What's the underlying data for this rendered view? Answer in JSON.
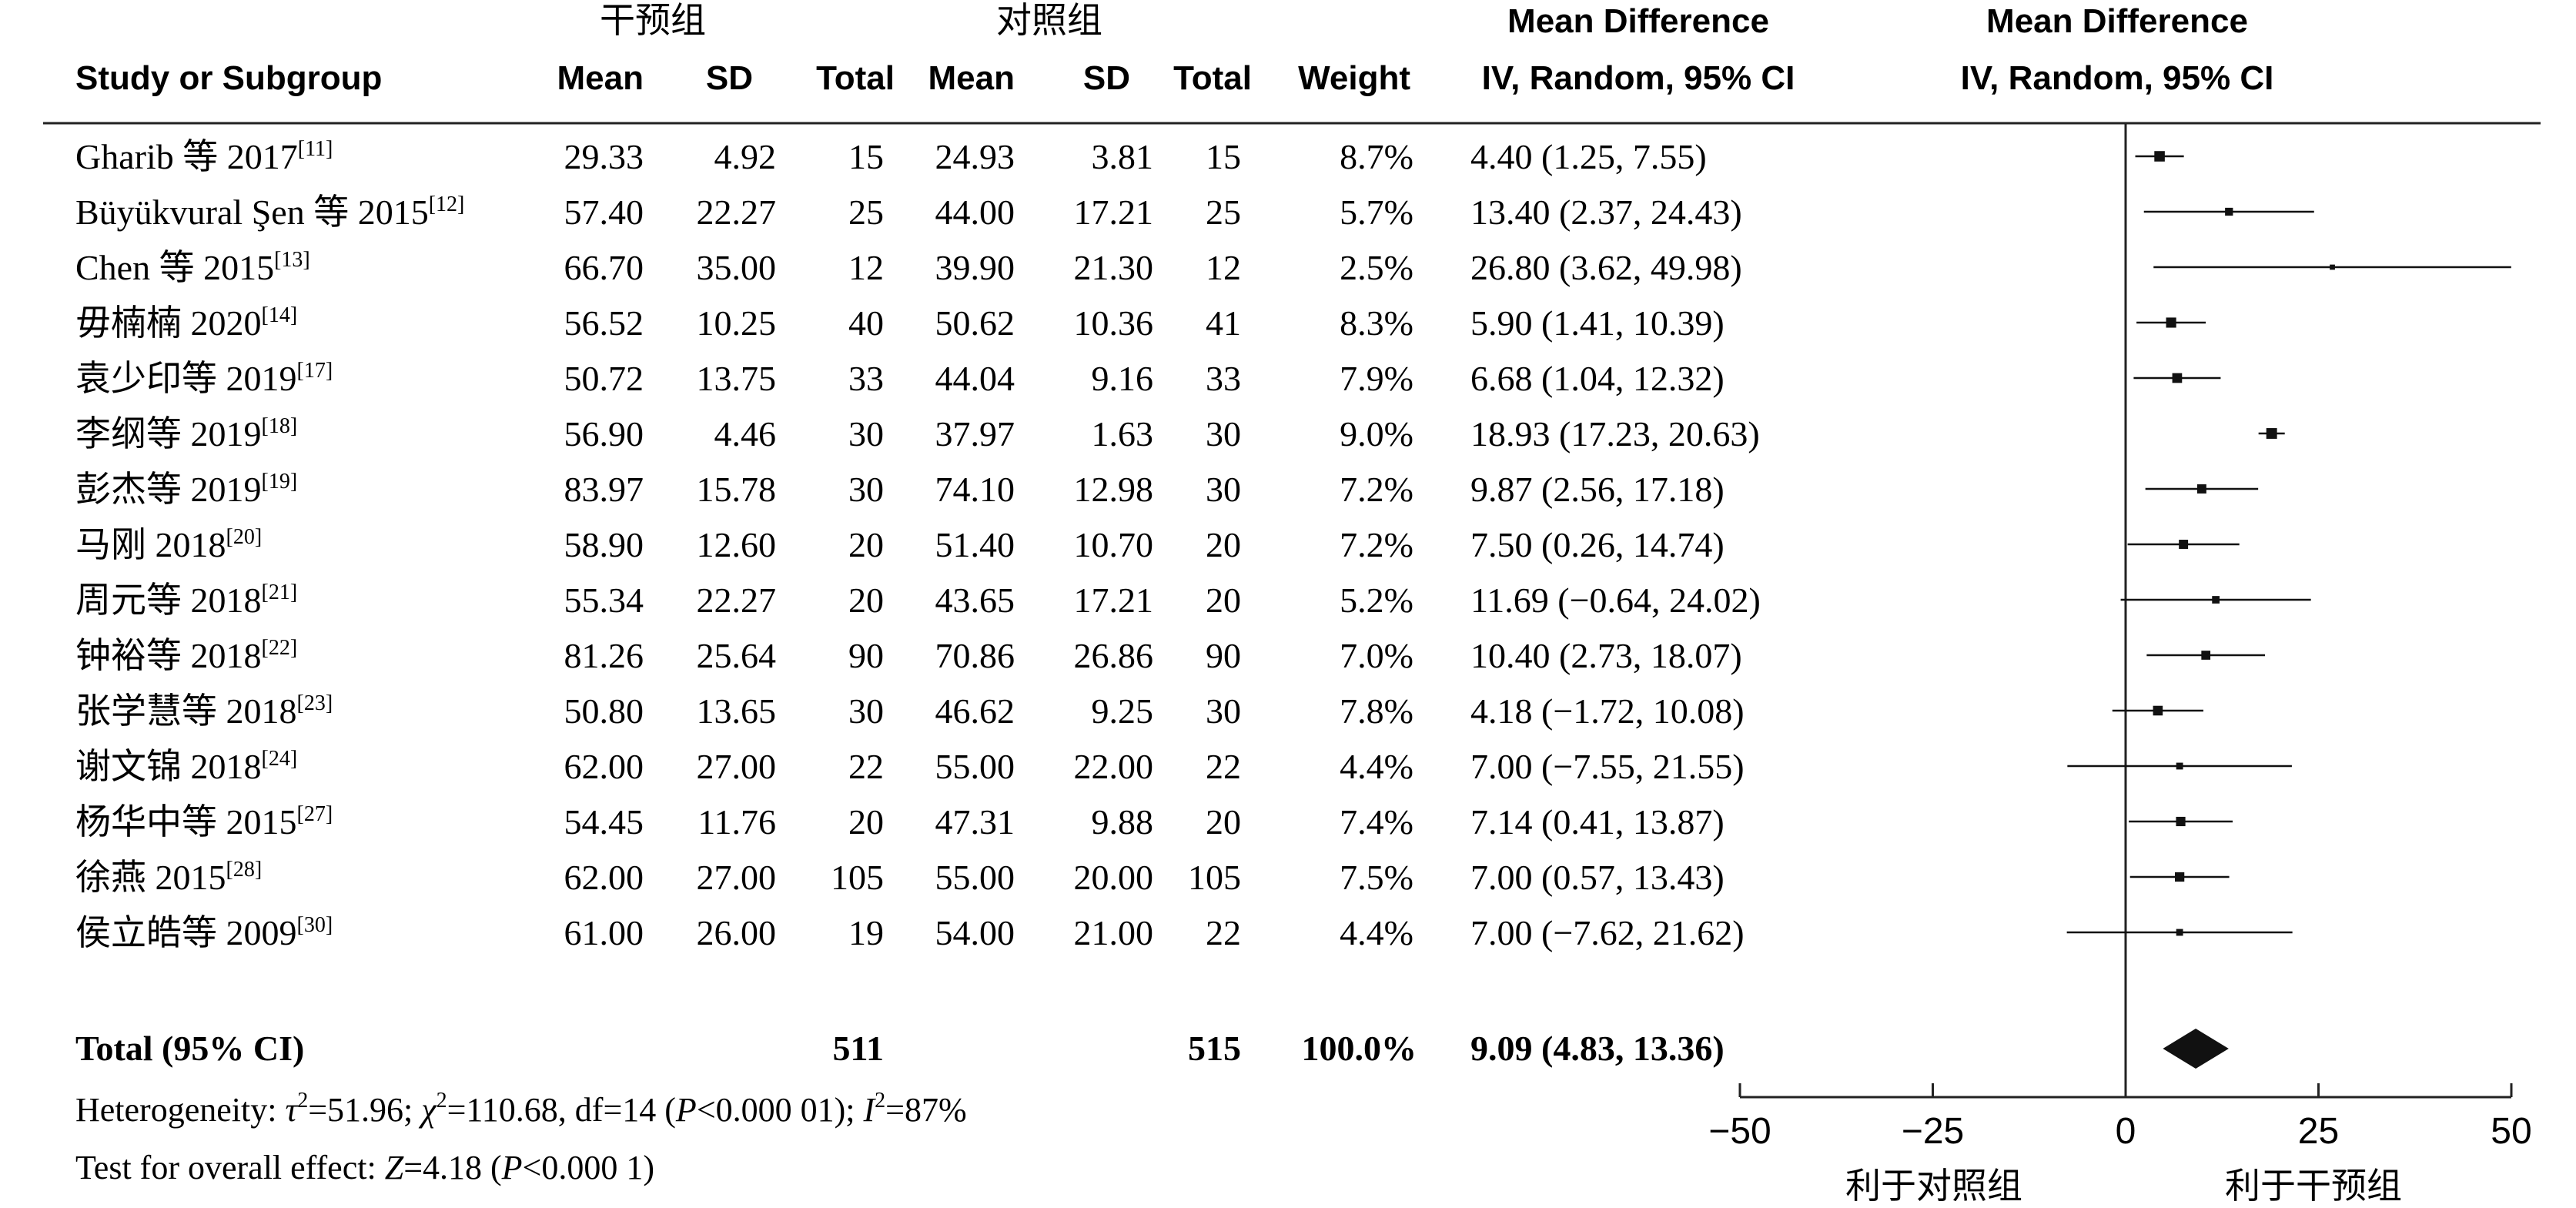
{
  "header": {
    "group_experimental": "干预组",
    "group_control": "对照组",
    "study_col": "Study or Subgroup",
    "mean": "Mean",
    "sd": "SD",
    "total": "Total",
    "weight": "Weight",
    "md_title": "Mean Difference",
    "md_method": "IV, Random, 95% CI",
    "plot_title": "Mean Difference",
    "plot_method": "IV, Random, 95% CI"
  },
  "chart_data": {
    "type": "forest",
    "studies": [
      {
        "name": "Gharib 等 2017",
        "ref": "[11]",
        "exp_mean": "29.33",
        "exp_sd": "4.92",
        "exp_total": "15",
        "ctl_mean": "24.93",
        "ctl_sd": "3.81",
        "ctl_total": "15",
        "weight": "8.7%",
        "ci_text": "4.40 (1.25, 7.55)",
        "md": 4.4,
        "lo": 1.25,
        "hi": 7.55,
        "w": 8.7
      },
      {
        "name": "Büyükvural Şen 等 2015",
        "ref": "[12]",
        "exp_mean": "57.40",
        "exp_sd": "22.27",
        "exp_total": "25",
        "ctl_mean": "44.00",
        "ctl_sd": "17.21",
        "ctl_total": "25",
        "weight": "5.7%",
        "ci_text": "13.40 (2.37, 24.43)",
        "md": 13.4,
        "lo": 2.37,
        "hi": 24.43,
        "w": 5.7
      },
      {
        "name": "Chen 等 2015",
        "ref": "[13]",
        "exp_mean": "66.70",
        "exp_sd": "35.00",
        "exp_total": "12",
        "ctl_mean": "39.90",
        "ctl_sd": "21.30",
        "ctl_total": "12",
        "weight": "2.5%",
        "ci_text": "26.80 (3.62, 49.98)",
        "md": 26.8,
        "lo": 3.62,
        "hi": 49.98,
        "w": 2.5
      },
      {
        "name": "毋楠楠 2020",
        "ref": "[14]",
        "exp_mean": "56.52",
        "exp_sd": "10.25",
        "exp_total": "40",
        "ctl_mean": "50.62",
        "ctl_sd": "10.36",
        "ctl_total": "41",
        "weight": "8.3%",
        "ci_text": "5.90 (1.41, 10.39)",
        "md": 5.9,
        "lo": 1.41,
        "hi": 10.39,
        "w": 8.3
      },
      {
        "name": "袁少印等 2019",
        "ref": "[17]",
        "exp_mean": "50.72",
        "exp_sd": "13.75",
        "exp_total": "33",
        "ctl_mean": "44.04",
        "ctl_sd": "9.16",
        "ctl_total": "33",
        "weight": "7.9%",
        "ci_text": "6.68 (1.04, 12.32)",
        "md": 6.68,
        "lo": 1.04,
        "hi": 12.32,
        "w": 7.9
      },
      {
        "name": "李纲等 2019",
        "ref": "[18]",
        "exp_mean": "56.90",
        "exp_sd": "4.46",
        "exp_total": "30",
        "ctl_mean": "37.97",
        "ctl_sd": "1.63",
        "ctl_total": "30",
        "weight": "9.0%",
        "ci_text": "18.93 (17.23, 20.63)",
        "md": 18.93,
        "lo": 17.23,
        "hi": 20.63,
        "w": 9.0
      },
      {
        "name": "彭杰等 2019",
        "ref": "[19]",
        "exp_mean": "83.97",
        "exp_sd": "15.78",
        "exp_total": "30",
        "ctl_mean": "74.10",
        "ctl_sd": "12.98",
        "ctl_total": "30",
        "weight": "7.2%",
        "ci_text": "9.87 (2.56, 17.18)",
        "md": 9.87,
        "lo": 2.56,
        "hi": 17.18,
        "w": 7.2
      },
      {
        "name": "马刚 2018",
        "ref": "[20]",
        "exp_mean": "58.90",
        "exp_sd": "12.60",
        "exp_total": "20",
        "ctl_mean": "51.40",
        "ctl_sd": "10.70",
        "ctl_total": "20",
        "weight": "7.2%",
        "ci_text": "7.50 (0.26, 14.74)",
        "md": 7.5,
        "lo": 0.26,
        "hi": 14.74,
        "w": 7.2
      },
      {
        "name": "周元等 2018",
        "ref": "[21]",
        "exp_mean": "55.34",
        "exp_sd": "22.27",
        "exp_total": "20",
        "ctl_mean": "43.65",
        "ctl_sd": "17.21",
        "ctl_total": "20",
        "weight": "5.2%",
        "ci_text": "11.69 (−0.64, 24.02)",
        "md": 11.69,
        "lo": -0.64,
        "hi": 24.02,
        "w": 5.2
      },
      {
        "name": "钟裕等 2018",
        "ref": "[22]",
        "exp_mean": "81.26",
        "exp_sd": "25.64",
        "exp_total": "90",
        "ctl_mean": "70.86",
        "ctl_sd": "26.86",
        "ctl_total": "90",
        "weight": "7.0%",
        "ci_text": "10.40 (2.73, 18.07)",
        "md": 10.4,
        "lo": 2.73,
        "hi": 18.07,
        "w": 7.0
      },
      {
        "name": "张学慧等 2018",
        "ref": "[23]",
        "exp_mean": "50.80",
        "exp_sd": "13.65",
        "exp_total": "30",
        "ctl_mean": "46.62",
        "ctl_sd": "9.25",
        "ctl_total": "30",
        "weight": "7.8%",
        "ci_text": "4.18 (−1.72, 10.08)",
        "md": 4.18,
        "lo": -1.72,
        "hi": 10.08,
        "w": 7.8
      },
      {
        "name": "谢文锦 2018",
        "ref": "[24]",
        "exp_mean": "62.00",
        "exp_sd": "27.00",
        "exp_total": "22",
        "ctl_mean": "55.00",
        "ctl_sd": "22.00",
        "ctl_total": "22",
        "weight": "4.4%",
        "ci_text": "7.00 (−7.55, 21.55)",
        "md": 7.0,
        "lo": -7.55,
        "hi": 21.55,
        "w": 4.4
      },
      {
        "name": "杨华中等 2015",
        "ref": "[27]",
        "exp_mean": "54.45",
        "exp_sd": "11.76",
        "exp_total": "20",
        "ctl_mean": "47.31",
        "ctl_sd": "9.88",
        "ctl_total": "20",
        "weight": "7.4%",
        "ci_text": "7.14 (0.41, 13.87)",
        "md": 7.14,
        "lo": 0.41,
        "hi": 13.87,
        "w": 7.4
      },
      {
        "name": "徐燕 2015",
        "ref": "[28]",
        "exp_mean": "62.00",
        "exp_sd": "27.00",
        "exp_total": "105",
        "ctl_mean": "55.00",
        "ctl_sd": "20.00",
        "ctl_total": "105",
        "weight": "7.5%",
        "ci_text": "7.00 (0.57, 13.43)",
        "md": 7.0,
        "lo": 0.57,
        "hi": 13.43,
        "w": 7.5
      },
      {
        "name": "侯立皓等 2009",
        "ref": "[30]",
        "exp_mean": "61.00",
        "exp_sd": "26.00",
        "exp_total": "19",
        "ctl_mean": "54.00",
        "ctl_sd": "21.00",
        "ctl_total": "22",
        "weight": "4.4%",
        "ci_text": "7.00 (−7.62, 21.62)",
        "md": 7.0,
        "lo": -7.62,
        "hi": 21.62,
        "w": 4.4
      }
    ],
    "total": {
      "label": "Total (95% CI)",
      "exp_total": "511",
      "ctl_total": "515",
      "weight": "100.0%",
      "ci_text": "9.09 (4.83, 13.36)",
      "md": 9.09,
      "lo": 4.83,
      "hi": 13.36
    },
    "heterogeneity": {
      "prefix": "Heterogeneity: ",
      "tau_sym": "τ",
      "tau_val": "=51.96; ",
      "chi_sym": "χ",
      "chi_val": "=110.68, df=14 (",
      "p_sym": "P",
      "p_val": "<0.000 01); ",
      "i_sym": "I",
      "i_val": "=87%"
    },
    "overall_effect": {
      "prefix": "Test for overall effect: ",
      "z_sym": "Z",
      "z_val": "=4.18 (",
      "p_sym": "P",
      "p_val": "<0.000 1)"
    },
    "x_axis": {
      "min": -50,
      "max": 50,
      "ticks": [
        -50,
        -25,
        0,
        25,
        50
      ],
      "tick_labels": [
        "−50",
        "−25",
        "0",
        "25",
        "50"
      ],
      "favours_left": "利于对照组",
      "favours_right": "利于干预组"
    }
  }
}
